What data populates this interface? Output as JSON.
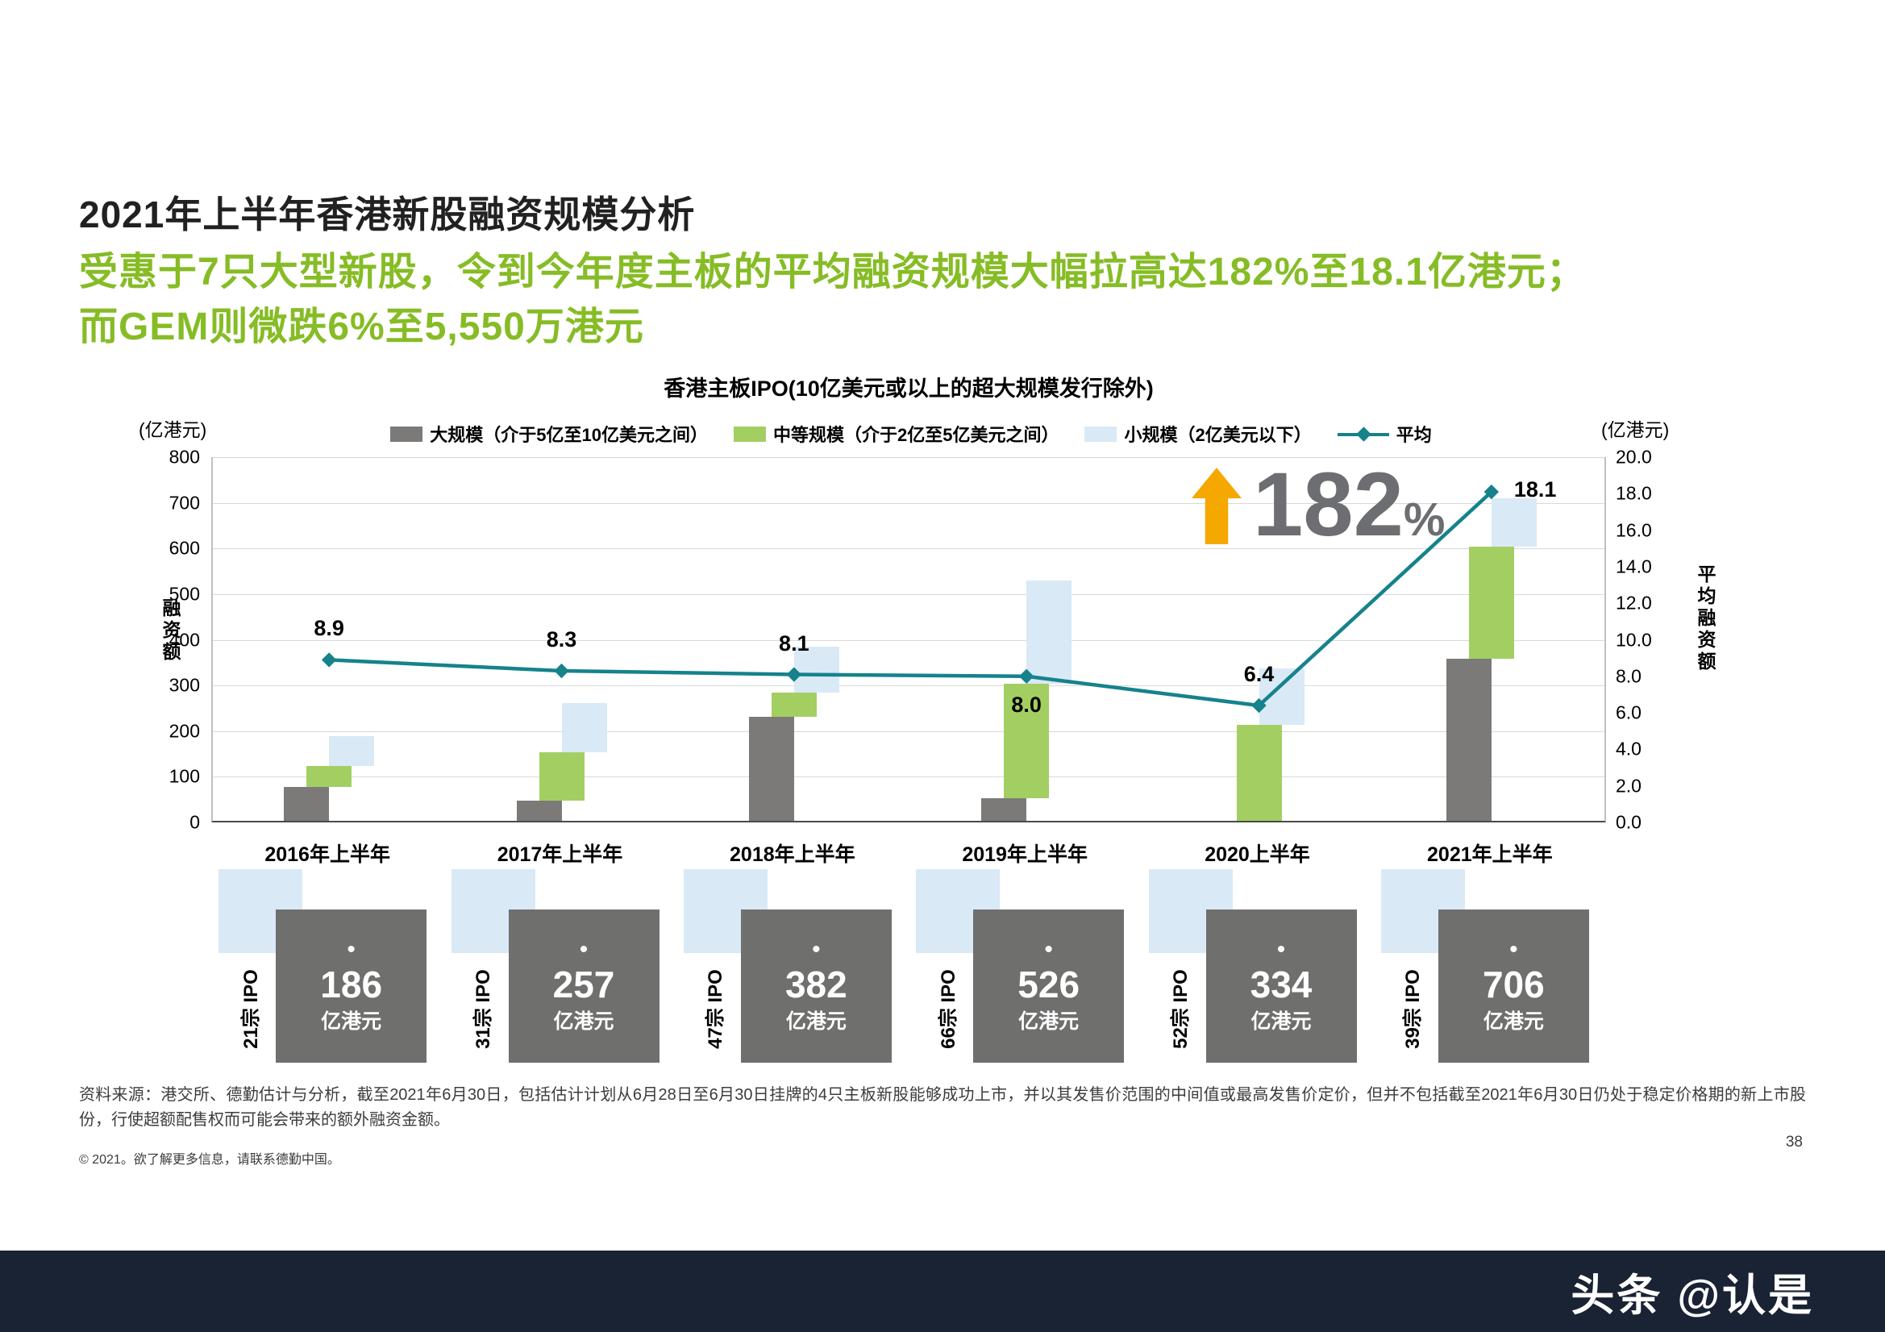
{
  "header": {
    "title": "2021年上半年香港新股融资规模分析",
    "subtitle_line1": "受惠于7只大型新股，令到今年度主板的平均融资规模大幅拉高达182%至18.1亿港元；",
    "subtitle_line2": "而GEM则微跌6%至5,550万港元"
  },
  "chart_data": {
    "type": "bar+line",
    "title": "香港主板IPO(10亿美元或以上的超大规模发行除外)",
    "categories": [
      "2016年上半年",
      "2017年上半年",
      "2018年上半年",
      "2019年上半年",
      "2020上半年",
      "2021年上半年"
    ],
    "series": [
      {
        "name": "大规模（介于5亿至10亿美元之间）",
        "color": "#7b7a78",
        "values": [
          75,
          45,
          228,
          50,
          0,
          355
        ]
      },
      {
        "name": "中等规模（介于2亿至5亿美元之间）",
        "color": "#a3cf62",
        "values": [
          45,
          105,
          52,
          250,
          210,
          245
        ]
      },
      {
        "name": "小规模（2亿美元以下）",
        "color": "#d9e9f6",
        "values": [
          66,
          107,
          102,
          226,
          124,
          106
        ]
      }
    ],
    "totals": [
      186,
      257,
      382,
      526,
      334,
      706
    ],
    "line": {
      "name": "平均",
      "color": "#15828c",
      "values": [
        8.9,
        8.3,
        8.1,
        8.0,
        6.4,
        18.1
      ],
      "label_positions": [
        "above",
        "above",
        "above",
        "below",
        "above",
        "right"
      ]
    },
    "left_axis": {
      "unit": "(亿港元)",
      "label": "融资额",
      "min": 0,
      "max": 800,
      "step": 100
    },
    "right_axis": {
      "unit": "(亿港元)",
      "label": "平均融资额",
      "min": 0,
      "max": 20,
      "step": 2
    },
    "grid": true,
    "legend_position": "top"
  },
  "annotation": {
    "value": "182",
    "sign": "%"
  },
  "cards": {
    "bullet": "•",
    "items": [
      {
        "count": "21宗 IPO",
        "value": "186",
        "unit": "亿港元"
      },
      {
        "count": "31宗 IPO",
        "value": "257",
        "unit": "亿港元"
      },
      {
        "count": "47宗 IPO",
        "value": "382",
        "unit": "亿港元"
      },
      {
        "count": "66宗 IPO",
        "value": "526",
        "unit": "亿港元"
      },
      {
        "count": "52宗 IPO",
        "value": "334",
        "unit": "亿港元"
      },
      {
        "count": "39宗 IPO",
        "value": "706",
        "unit": "亿港元"
      }
    ]
  },
  "footer": {
    "source": "资料来源：港交所、德勤估计与分析，截至2021年6月30日，包括估计计划从6月28日至6月30日挂牌的4只主板新股能够成功上市，并以其发售价范围的中间值或最高发售价定价，但并不包括截至2021年6月30日仍处于稳定价格期的新上市股份，行使超额配售权而可能会带来的额外融资金额。",
    "copyright": "© 2021。欲了解更多信息，请联系德勤中国。",
    "page_number": "38"
  },
  "watermark": {
    "text": "头条 @认是"
  },
  "colors": {
    "subtitle_green": "#86bc25",
    "annotation_orange": "#f5a800",
    "annotation_text": "#6d6e71",
    "card_box_gray": "#6f6f6e",
    "card_square_blue": "#d9e9f6",
    "watermark_bg": "#1a2333"
  }
}
